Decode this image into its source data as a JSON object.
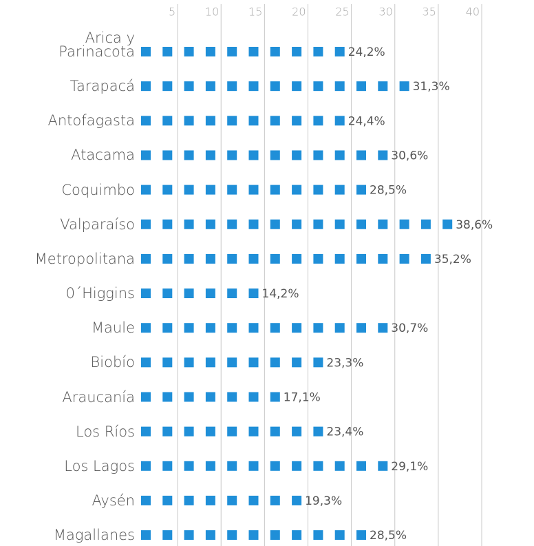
{
  "chart_data": {
    "type": "pictograph",
    "categories": [
      "Arica y\nParinacota",
      "Tarapacá",
      "Antofagasta",
      "Atacama",
      "Coquimbo",
      "Valparaíso",
      "Metropolitana",
      "0´Higgins",
      "Maule",
      "Biobío",
      "Araucanía",
      "Los Ríos",
      "Los Lagos",
      "Aysén",
      "Magallanes"
    ],
    "values": [
      24.2,
      31.3,
      24.4,
      30.6,
      28.5,
      38.6,
      35.2,
      14.2,
      30.7,
      23.3,
      17.1,
      23.4,
      29.1,
      19.3,
      28.5
    ],
    "value_labels": [
      "24,2%",
      "31,3%",
      "24,4%",
      "30,6%",
      "28,5%",
      "38,6%",
      "35,2%",
      "14,2%",
      "30,7%",
      "23,3%",
      "17,1%",
      "23,4%",
      "29,1%",
      "19,3%",
      "28,5%"
    ],
    "color": "#1f8fd8",
    "xlim": [
      0,
      40
    ],
    "xticks": [
      5,
      10,
      15,
      20,
      25,
      30,
      35,
      40
    ],
    "grid": true
  }
}
